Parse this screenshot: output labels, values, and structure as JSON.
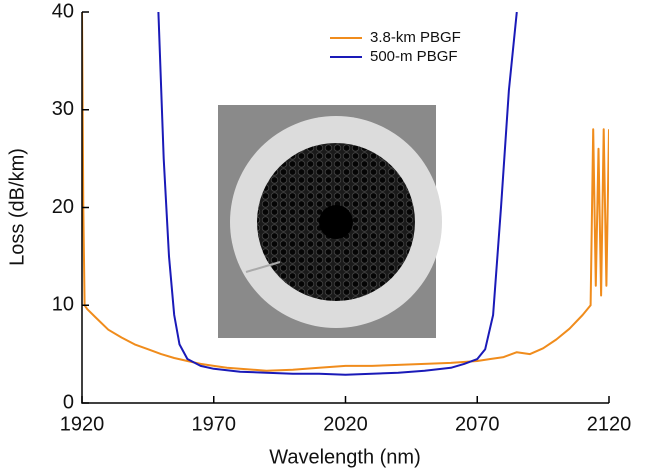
{
  "chart_data": {
    "type": "line",
    "x_label": "Wavelength (nm)",
    "y_label": "Loss (dB/km)",
    "xlim": [
      1920,
      2120
    ],
    "ylim": [
      0,
      40
    ],
    "xticks": [
      1920,
      1970,
      2020,
      2070,
      2120
    ],
    "yticks": [
      0,
      10,
      20,
      30,
      40
    ],
    "series": [
      {
        "name": "3.8-km PBGF",
        "color": "#f08c1c",
        "x": [
          1920,
          1920.5,
          1921,
          1922,
          1925,
          1930,
          1935,
          1940,
          1945,
          1950,
          1955,
          1960,
          1965,
          1970,
          1975,
          1980,
          1990,
          2000,
          2010,
          2020,
          2030,
          2040,
          2050,
          2060,
          2070,
          2075,
          2080,
          2085,
          2090,
          2095,
          2100,
          2105,
          2110,
          2113,
          2114,
          2115,
          2116,
          2117,
          2118,
          2119,
          2120
        ],
        "values": [
          40,
          20,
          10,
          9.6,
          8.8,
          7.5,
          6.7,
          6,
          5.5,
          5,
          4.6,
          4.3,
          4,
          3.8,
          3.6,
          3.5,
          3.3,
          3.4,
          3.6,
          3.8,
          3.8,
          3.9,
          4,
          4.1,
          4.3,
          4.5,
          4.7,
          5.2,
          5,
          5.6,
          6.5,
          7.6,
          9,
          10,
          28,
          12,
          26,
          11,
          28,
          12,
          28
        ]
      },
      {
        "name": "500-m PBGF",
        "color": "#1a1ab8",
        "x": [
          1949,
          1951,
          1953,
          1955,
          1957,
          1960,
          1965,
          1970,
          1980,
          1990,
          2000,
          2010,
          2020,
          2030,
          2040,
          2050,
          2060,
          2065,
          2070,
          2073,
          2076,
          2079,
          2082,
          2085
        ],
        "values": [
          40,
          25,
          15,
          9,
          6,
          4.5,
          3.8,
          3.5,
          3.2,
          3.1,
          3,
          3,
          2.9,
          3,
          3.1,
          3.3,
          3.6,
          4,
          4.5,
          5.5,
          9,
          20,
          32,
          40
        ]
      }
    ]
  }
}
